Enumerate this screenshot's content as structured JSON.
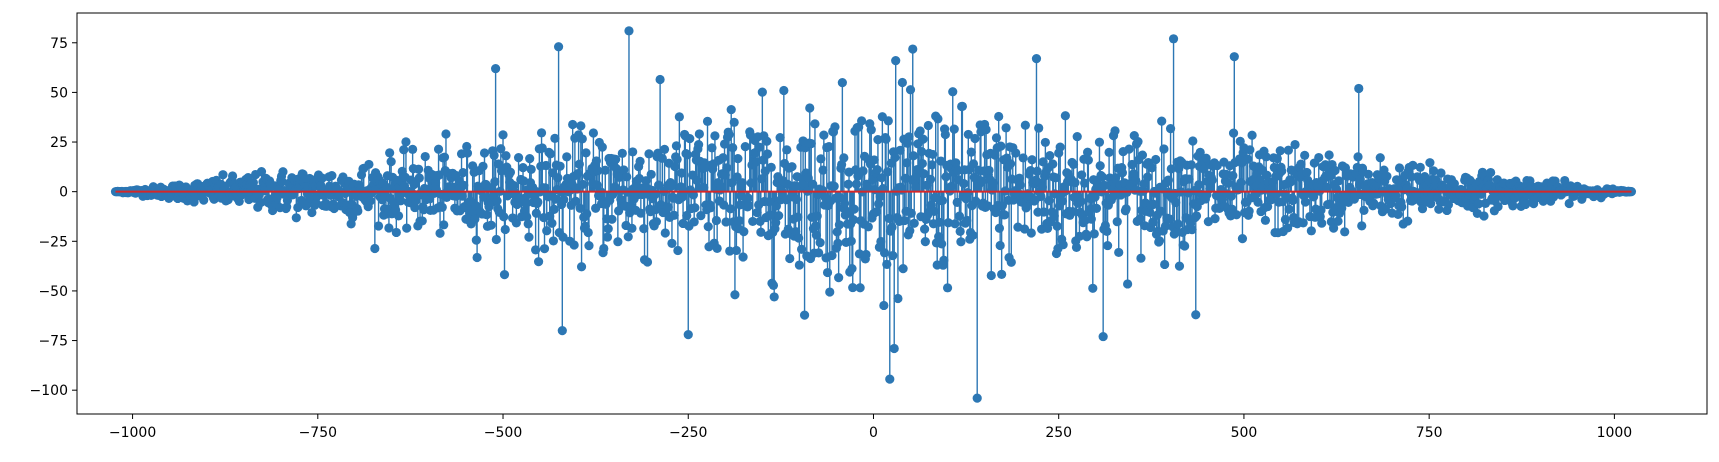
{
  "chart_data": {
    "type": "stem",
    "title": "",
    "xlabel": "",
    "ylabel": "",
    "xlim": [
      -1075,
      1125
    ],
    "ylim": [
      -112,
      90
    ],
    "x_ticks": [
      -1000,
      -750,
      -500,
      -250,
      0,
      250,
      500,
      750,
      1000
    ],
    "x_tick_labels": [
      "−1000",
      "−750",
      "−500",
      "−250",
      "0",
      "250",
      "500",
      "750",
      "1000"
    ],
    "y_ticks": [
      -100,
      -75,
      -50,
      -25,
      0,
      25,
      50,
      75
    ],
    "y_tick_labels": [
      "−100",
      "−75",
      "−50",
      "−25",
      "0",
      "25",
      "50",
      "75"
    ],
    "x_range": [
      -1023,
      1023
    ],
    "y_extremes": {
      "max": 81,
      "min": -104
    },
    "notable_points": [
      {
        "x": -330,
        "y": 81
      },
      {
        "x": 405,
        "y": 77
      },
      {
        "x": -425,
        "y": 73
      },
      {
        "x": 487,
        "y": 68
      },
      {
        "x": 220,
        "y": 67
      },
      {
        "x": 30,
        "y": 66
      },
      {
        "x": -250,
        "y": 60
      },
      {
        "x": -510,
        "y": 62
      },
      {
        "x": 655,
        "y": 52
      },
      {
        "x": 140,
        "y": -104
      },
      {
        "x": 28,
        "y": -79
      },
      {
        "x": -420,
        "y": -70
      },
      {
        "x": -250,
        "y": -72
      },
      {
        "x": 310,
        "y": -73
      },
      {
        "x": 435,
        "y": -62
      }
    ],
    "envelope_note": "dense, symmetric spread roughly proportional to (1 - |x|/1023)",
    "baseline": 0,
    "colors": {
      "stem": "#2c77b4",
      "marker": "#2c77b4",
      "baseline": "#d62728"
    },
    "grid": false,
    "legend": "none"
  }
}
